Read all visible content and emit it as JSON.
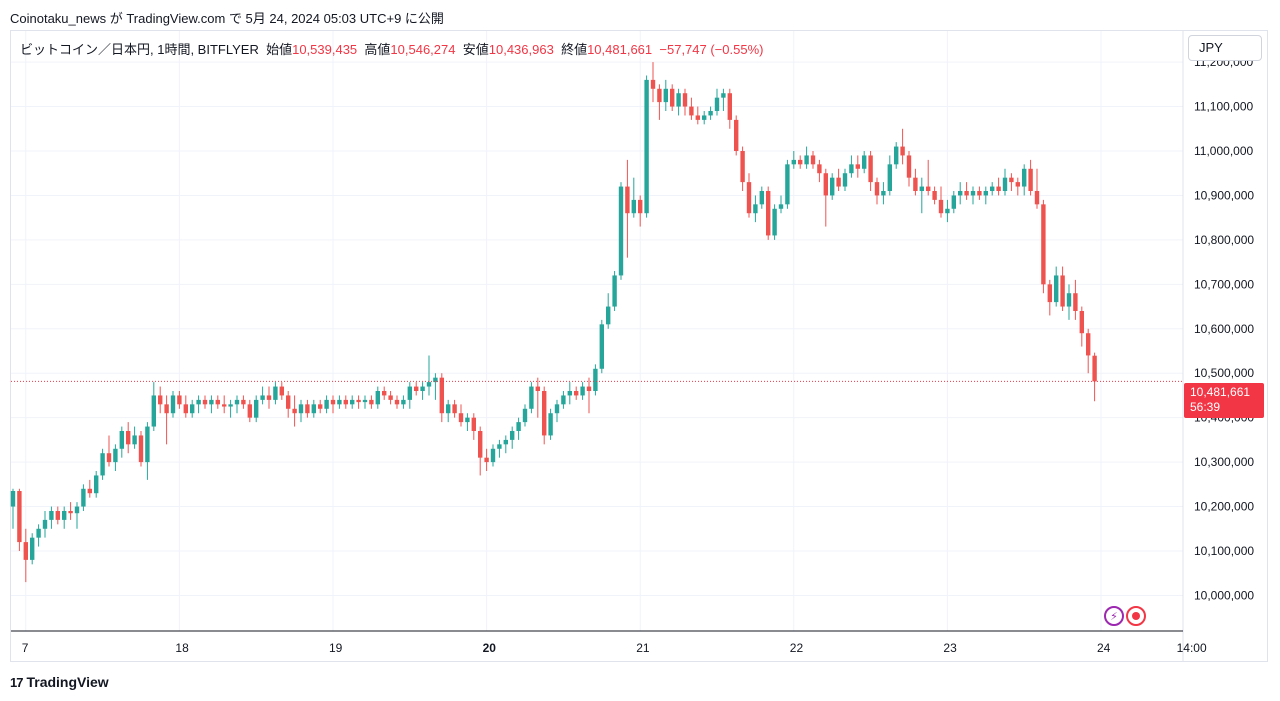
{
  "header": {
    "published_line": "Coinotaku_news が TradingView.com で 5月 24, 2024 05:03 UTC+9 に公開"
  },
  "legend": {
    "symbol": "ビットコイン／日本円, 1時間, BITFLYER",
    "open_label": "始値",
    "open": "10,539,435",
    "high_label": "高値",
    "high": "10,546,274",
    "low_label": "安値",
    "low": "10,436,963",
    "close_label": "終値",
    "close": "10,481,661",
    "change": "−57,747 (−0.55%)"
  },
  "currency": "JPY",
  "price_tag": {
    "price": "10,481,661",
    "countdown": "56:39"
  },
  "footer": {
    "brand": "TradingView",
    "logo": "17"
  },
  "icons": {
    "bolt": "lightning-icon",
    "record": "record-icon"
  },
  "colors": {
    "up": "#26a69a",
    "down": "#ef5350",
    "grid": "#f0f3fa",
    "last_price": "#f23645"
  },
  "chart_data": {
    "type": "candlestick",
    "interval": "1h",
    "ylim": [
      9920000,
      11270000
    ],
    "y_ticks": [
      10000000,
      10100000,
      10200000,
      10300000,
      10400000,
      10500000,
      10600000,
      10700000,
      10800000,
      10900000,
      11000000,
      11100000,
      11200000
    ],
    "y_tick_labels": [
      "10,000,000",
      "10,100,000",
      "10,200,000",
      "10,300,000",
      "10,400,000",
      "10,500,000",
      "10,600,000",
      "10,700,000",
      "10,800,000",
      "10,900,000",
      "11,000,000",
      "11,100,000",
      "11,200,000"
    ],
    "x_ticks": [
      {
        "label": "7",
        "t": 2
      },
      {
        "label": "18",
        "t": 26
      },
      {
        "label": "19",
        "t": 50
      },
      {
        "label": "20",
        "t": 74,
        "bold": true
      },
      {
        "label": "21",
        "t": 98
      },
      {
        "label": "22",
        "t": 122
      },
      {
        "label": "23",
        "t": 146
      },
      {
        "label": "24",
        "t": 170
      },
      {
        "label": "14:00",
        "t": 184
      }
    ],
    "last_price": 10481661,
    "candles": [
      [
        10200000,
        10240000,
        10150000,
        10235000
      ],
      [
        10235000,
        10240000,
        10100000,
        10120000
      ],
      [
        10120000,
        10150000,
        10030000,
        10080000
      ],
      [
        10080000,
        10140000,
        10070000,
        10130000
      ],
      [
        10130000,
        10160000,
        10110000,
        10150000
      ],
      [
        10150000,
        10190000,
        10130000,
        10170000
      ],
      [
        10170000,
        10200000,
        10150000,
        10190000
      ],
      [
        10190000,
        10200000,
        10160000,
        10170000
      ],
      [
        10170000,
        10200000,
        10150000,
        10190000
      ],
      [
        10190000,
        10210000,
        10170000,
        10185000
      ],
      [
        10185000,
        10210000,
        10150000,
        10200000
      ],
      [
        10200000,
        10250000,
        10190000,
        10240000
      ],
      [
        10240000,
        10260000,
        10220000,
        10230000
      ],
      [
        10230000,
        10280000,
        10220000,
        10270000
      ],
      [
        10270000,
        10330000,
        10260000,
        10320000
      ],
      [
        10320000,
        10360000,
        10290000,
        10300000
      ],
      [
        10300000,
        10340000,
        10280000,
        10330000
      ],
      [
        10330000,
        10380000,
        10310000,
        10370000
      ],
      [
        10370000,
        10390000,
        10320000,
        10340000
      ],
      [
        10340000,
        10380000,
        10330000,
        10360000
      ],
      [
        10360000,
        10370000,
        10290000,
        10300000
      ],
      [
        10300000,
        10390000,
        10260000,
        10380000
      ],
      [
        10380000,
        10480000,
        10370000,
        10450000
      ],
      [
        10450000,
        10470000,
        10410000,
        10430000
      ],
      [
        10430000,
        10450000,
        10340000,
        10410000
      ],
      [
        10410000,
        10460000,
        10400000,
        10450000
      ],
      [
        10450000,
        10460000,
        10420000,
        10430000
      ],
      [
        10430000,
        10450000,
        10400000,
        10410000
      ],
      [
        10410000,
        10440000,
        10400000,
        10430000
      ],
      [
        10430000,
        10450000,
        10410000,
        10440000
      ],
      [
        10440000,
        10450000,
        10420000,
        10430000
      ],
      [
        10430000,
        10450000,
        10410000,
        10440000
      ],
      [
        10440000,
        10450000,
        10420000,
        10430000
      ],
      [
        10430000,
        10450000,
        10410000,
        10425000
      ],
      [
        10425000,
        10440000,
        10400000,
        10430000
      ],
      [
        10430000,
        10450000,
        10410000,
        10440000
      ],
      [
        10440000,
        10450000,
        10420000,
        10430000
      ],
      [
        10430000,
        10440000,
        10390000,
        10400000
      ],
      [
        10400000,
        10450000,
        10390000,
        10440000
      ],
      [
        10440000,
        10470000,
        10430000,
        10450000
      ],
      [
        10450000,
        10470000,
        10420000,
        10440000
      ],
      [
        10440000,
        10480000,
        10430000,
        10470000
      ],
      [
        10470000,
        10480000,
        10440000,
        10450000
      ],
      [
        10450000,
        10460000,
        10400000,
        10420000
      ],
      [
        10420000,
        10450000,
        10380000,
        10410000
      ],
      [
        10410000,
        10440000,
        10390000,
        10430000
      ],
      [
        10430000,
        10440000,
        10400000,
        10410000
      ],
      [
        10410000,
        10440000,
        10400000,
        10430000
      ],
      [
        10430000,
        10440000,
        10410000,
        10420000
      ],
      [
        10420000,
        10450000,
        10410000,
        10440000
      ],
      [
        10440000,
        10450000,
        10410000,
        10430000
      ],
      [
        10430000,
        10450000,
        10420000,
        10440000
      ],
      [
        10440000,
        10450000,
        10420000,
        10430000
      ],
      [
        10430000,
        10450000,
        10420000,
        10440000
      ],
      [
        10440000,
        10450000,
        10420000,
        10435000
      ],
      [
        10435000,
        10450000,
        10420000,
        10440000
      ],
      [
        10440000,
        10450000,
        10420000,
        10430000
      ],
      [
        10430000,
        10470000,
        10420000,
        10460000
      ],
      [
        10460000,
        10470000,
        10440000,
        10450000
      ],
      [
        10450000,
        10460000,
        10430000,
        10440000
      ],
      [
        10440000,
        10450000,
        10420000,
        10430000
      ],
      [
        10430000,
        10450000,
        10420000,
        10440000
      ],
      [
        10440000,
        10480000,
        10420000,
        10470000
      ],
      [
        10470000,
        10480000,
        10450000,
        10460000
      ],
      [
        10460000,
        10480000,
        10440000,
        10470000
      ],
      [
        10470000,
        10540000,
        10450000,
        10480000
      ],
      [
        10480000,
        10500000,
        10440000,
        10490000
      ],
      [
        10490000,
        10500000,
        10390000,
        10410000
      ],
      [
        10410000,
        10440000,
        10390000,
        10430000
      ],
      [
        10430000,
        10440000,
        10400000,
        10410000
      ],
      [
        10410000,
        10430000,
        10380000,
        10390000
      ],
      [
        10390000,
        10410000,
        10370000,
        10400000
      ],
      [
        10400000,
        10410000,
        10350000,
        10370000
      ],
      [
        10370000,
        10380000,
        10270000,
        10310000
      ],
      [
        10310000,
        10330000,
        10280000,
        10300000
      ],
      [
        10300000,
        10340000,
        10290000,
        10330000
      ],
      [
        10330000,
        10350000,
        10310000,
        10340000
      ],
      [
        10340000,
        10360000,
        10320000,
        10350000
      ],
      [
        10350000,
        10380000,
        10330000,
        10370000
      ],
      [
        10370000,
        10400000,
        10350000,
        10390000
      ],
      [
        10390000,
        10430000,
        10380000,
        10420000
      ],
      [
        10420000,
        10480000,
        10410000,
        10470000
      ],
      [
        10470000,
        10490000,
        10400000,
        10460000
      ],
      [
        10460000,
        10470000,
        10340000,
        10360000
      ],
      [
        10360000,
        10420000,
        10350000,
        10410000
      ],
      [
        10410000,
        10440000,
        10390000,
        10430000
      ],
      [
        10430000,
        10460000,
        10420000,
        10450000
      ],
      [
        10450000,
        10480000,
        10430000,
        10460000
      ],
      [
        10460000,
        10470000,
        10440000,
        10450000
      ],
      [
        10450000,
        10480000,
        10440000,
        10470000
      ],
      [
        10470000,
        10490000,
        10410000,
        10460000
      ],
      [
        10460000,
        10520000,
        10450000,
        10510000
      ],
      [
        10510000,
        10620000,
        10500000,
        10610000
      ],
      [
        10610000,
        10680000,
        10600000,
        10650000
      ],
      [
        10650000,
        10730000,
        10640000,
        10720000
      ],
      [
        10720000,
        10930000,
        10710000,
        10920000
      ],
      [
        10920000,
        10980000,
        10760000,
        10860000
      ],
      [
        10860000,
        10940000,
        10850000,
        10890000
      ],
      [
        10890000,
        10900000,
        10830000,
        10860000
      ],
      [
        10860000,
        11170000,
        10850000,
        11160000
      ],
      [
        11160000,
        11200000,
        11110000,
        11140000
      ],
      [
        11140000,
        11150000,
        11070000,
        11110000
      ],
      [
        11110000,
        11160000,
        11090000,
        11140000
      ],
      [
        11140000,
        11150000,
        11090000,
        11100000
      ],
      [
        11100000,
        11140000,
        11080000,
        11130000
      ],
      [
        11130000,
        11140000,
        11080000,
        11100000
      ],
      [
        11100000,
        11120000,
        11070000,
        11080000
      ],
      [
        11080000,
        11100000,
        11060000,
        11070000
      ],
      [
        11070000,
        11090000,
        11060000,
        11080000
      ],
      [
        11080000,
        11100000,
        11070000,
        11090000
      ],
      [
        11090000,
        11140000,
        11080000,
        11120000
      ],
      [
        11120000,
        11140000,
        11090000,
        11130000
      ],
      [
        11130000,
        11140000,
        11050000,
        11070000
      ],
      [
        11070000,
        11080000,
        10990000,
        11000000
      ],
      [
        11000000,
        11010000,
        10910000,
        10930000
      ],
      [
        10930000,
        10950000,
        10850000,
        10860000
      ],
      [
        10860000,
        10900000,
        10840000,
        10880000
      ],
      [
        10880000,
        10920000,
        10870000,
        10910000
      ],
      [
        10910000,
        10920000,
        10800000,
        10810000
      ],
      [
        10810000,
        10880000,
        10800000,
        10870000
      ],
      [
        10870000,
        10900000,
        10860000,
        10880000
      ],
      [
        10880000,
        10980000,
        10870000,
        10970000
      ],
      [
        10970000,
        11000000,
        10960000,
        10980000
      ],
      [
        10980000,
        10990000,
        10960000,
        10970000
      ],
      [
        10970000,
        11010000,
        10960000,
        10990000
      ],
      [
        10990000,
        11000000,
        10960000,
        10970000
      ],
      [
        10970000,
        10980000,
        10930000,
        10950000
      ],
      [
        10950000,
        10960000,
        10830000,
        10900000
      ],
      [
        10900000,
        10950000,
        10890000,
        10940000
      ],
      [
        10940000,
        10960000,
        10910000,
        10920000
      ],
      [
        10920000,
        10960000,
        10910000,
        10950000
      ],
      [
        10950000,
        10990000,
        10940000,
        10970000
      ],
      [
        10970000,
        10990000,
        10940000,
        10960000
      ],
      [
        10960000,
        11000000,
        10950000,
        10990000
      ],
      [
        10990000,
        11000000,
        10910000,
        10930000
      ],
      [
        10930000,
        10940000,
        10880000,
        10900000
      ],
      [
        10900000,
        10930000,
        10880000,
        10910000
      ],
      [
        10910000,
        10990000,
        10900000,
        10970000
      ],
      [
        10970000,
        11020000,
        10960000,
        11010000
      ],
      [
        11010000,
        11050000,
        10970000,
        10990000
      ],
      [
        10990000,
        11000000,
        10920000,
        10940000
      ],
      [
        10940000,
        10960000,
        10900000,
        10910000
      ],
      [
        10910000,
        10940000,
        10860000,
        10920000
      ],
      [
        10920000,
        10980000,
        10900000,
        10910000
      ],
      [
        10910000,
        10920000,
        10880000,
        10890000
      ],
      [
        10890000,
        10920000,
        10850000,
        10860000
      ],
      [
        10860000,
        10890000,
        10840000,
        10870000
      ],
      [
        10870000,
        10910000,
        10860000,
        10900000
      ],
      [
        10900000,
        10930000,
        10880000,
        10910000
      ],
      [
        10910000,
        10930000,
        10890000,
        10900000
      ],
      [
        10900000,
        10920000,
        10880000,
        10910000
      ],
      [
        10910000,
        10920000,
        10890000,
        10900000
      ],
      [
        10900000,
        10920000,
        10880000,
        10910000
      ],
      [
        10910000,
        10930000,
        10900000,
        10920000
      ],
      [
        10920000,
        10940000,
        10900000,
        10910000
      ],
      [
        10910000,
        10960000,
        10900000,
        10940000
      ],
      [
        10940000,
        10950000,
        10910000,
        10930000
      ],
      [
        10930000,
        10940000,
        10900000,
        10920000
      ],
      [
        10920000,
        10970000,
        10900000,
        10960000
      ],
      [
        10960000,
        10980000,
        10900000,
        10910000
      ],
      [
        10910000,
        10960000,
        10870000,
        10880000
      ],
      [
        10880000,
        10890000,
        10680000,
        10700000
      ],
      [
        10700000,
        10710000,
        10630000,
        10660000
      ],
      [
        10660000,
        10740000,
        10650000,
        10720000
      ],
      [
        10720000,
        10740000,
        10640000,
        10650000
      ],
      [
        10650000,
        10700000,
        10620000,
        10680000
      ],
      [
        10680000,
        10710000,
        10620000,
        10640000
      ],
      [
        10640000,
        10650000,
        10560000,
        10590000
      ],
      [
        10590000,
        10600000,
        10500000,
        10540000
      ],
      [
        10539435,
        10546274,
        10436963,
        10481661
      ]
    ]
  }
}
